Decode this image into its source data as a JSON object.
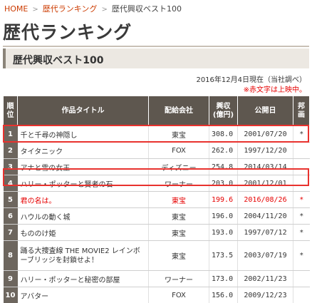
{
  "breadcrumb": {
    "home": "HOME",
    "sep": ">",
    "category": "歴代ランキング",
    "current": "歴代興収ベスト100"
  },
  "title": "歴代ランキング",
  "section": "歴代興収ベスト100",
  "asof": "2016年12月4日現在（当社調べ）",
  "note": "※赤文字は上映中。",
  "headers": {
    "rank": "順位",
    "title": "作品タイトル",
    "company": "配給会社",
    "gross_line1": "興収",
    "gross_line2": "(億円)",
    "date": "公開日",
    "screen_line1": "邦",
    "screen_line2": "画"
  },
  "rows": [
    {
      "rank": "1",
      "title": "千と千尋の神隠し",
      "company": "東宝",
      "gross": "308.0",
      "date": "2001/07/20",
      "mark": "*"
    },
    {
      "rank": "2",
      "title": "タイタニック",
      "company": "FOX",
      "gross": "262.0",
      "date": "1997/12/20",
      "mark": ""
    },
    {
      "rank": "3",
      "title": "アナと雪の女王",
      "company": "ディズニー",
      "gross": "254.8",
      "date": "2014/03/14",
      "mark": ""
    },
    {
      "rank": "4",
      "title": "ハリー・ポッターと賢者の石",
      "company": "ワーナー",
      "gross": "203.0",
      "date": "2001/12/01",
      "mark": ""
    },
    {
      "rank": "5",
      "title": "君の名は。",
      "company": "東宝",
      "gross": "199.6",
      "date": "2016/08/26",
      "mark": "*"
    },
    {
      "rank": "6",
      "title": "ハウルの動く城",
      "company": "東宝",
      "gross": "196.0",
      "date": "2004/11/20",
      "mark": "*"
    },
    {
      "rank": "7",
      "title": "もののけ姫",
      "company": "東宝",
      "gross": "193.0",
      "date": "1997/07/12",
      "mark": "*"
    },
    {
      "rank": "8",
      "title": "踊る大捜査線 THE MOVIE2 レインボーブリッジを封鎖せよ！",
      "company": "東宝",
      "gross": "173.5",
      "date": "2003/07/19",
      "mark": "*"
    },
    {
      "rank": "9",
      "title": "ハリー・ポッターと秘密の部屋",
      "company": "ワーナー",
      "gross": "173.0",
      "date": "2002/11/23",
      "mark": ""
    },
    {
      "rank": "10",
      "title": "アバター",
      "company": "FOX",
      "gross": "156.0",
      "date": "2009/12/23",
      "mark": ""
    }
  ],
  "colors": {
    "accent_link": "#cc3b00",
    "current_showing": "#e60000",
    "header_bg": "#5e574f",
    "highlight_box": "#e8322e"
  }
}
